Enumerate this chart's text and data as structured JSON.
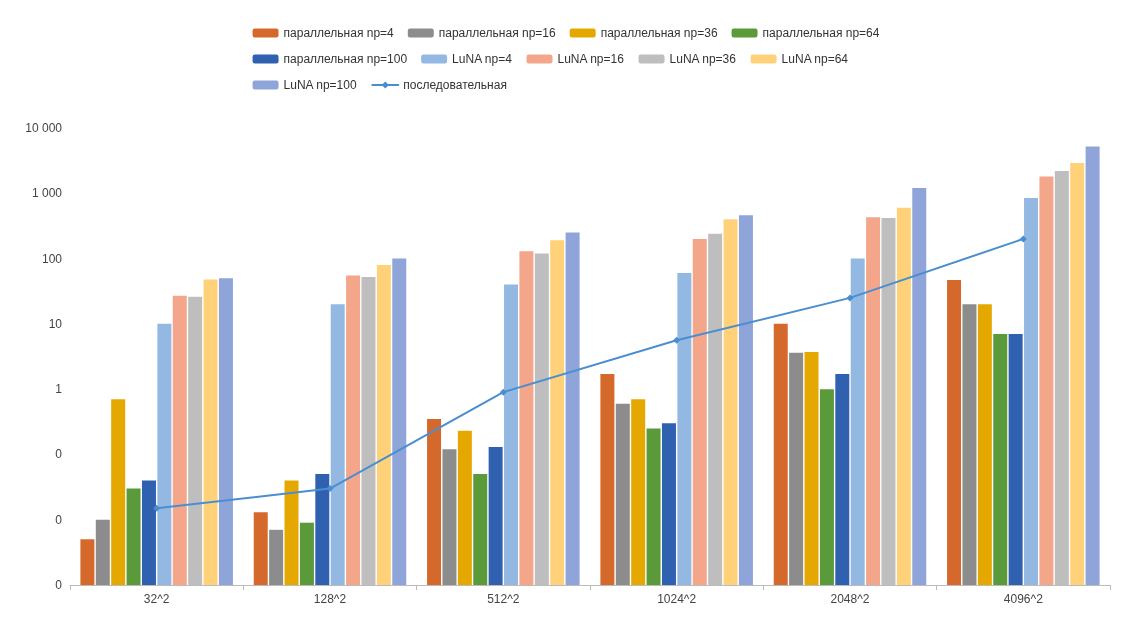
{
  "chart_data": {
    "type": "bar",
    "categories": [
      "32^2",
      "128^2",
      "512^2",
      "1024^2",
      "2048^2",
      "4096^2"
    ],
    "log": "y",
    "ylim": [
      0.001,
      10000
    ],
    "yticks": [
      {
        "value": 0.001,
        "label": "0"
      },
      {
        "value": 0.01,
        "label": "0"
      },
      {
        "value": 0.1,
        "label": "0"
      },
      1,
      10,
      100,
      {
        "value": 1000,
        "label": "1 000"
      },
      {
        "value": 10000,
        "label": "10 000"
      }
    ],
    "grid": false,
    "legend": "top",
    "series": [
      {
        "name": "параллельная np=4",
        "color": "#d4692b",
        "values": [
          0.005,
          0.013,
          0.35,
          1.7,
          10,
          47
        ]
      },
      {
        "name": "параллельная np=16",
        "color": "#8c8c8c",
        "values": [
          0.01,
          0.007,
          0.12,
          0.6,
          3.6,
          20
        ]
      },
      {
        "name": "параллельная np=36",
        "color": "#e5a800",
        "values": [
          0.7,
          0.04,
          0.23,
          0.7,
          3.7,
          20
        ]
      },
      {
        "name": "параллельная np=64",
        "color": "#5a9a3a",
        "values": [
          0.03,
          0.009,
          0.05,
          0.25,
          1,
          7
        ]
      },
      {
        "name": "параллельная np=100",
        "color": "#3060b0",
        "values": [
          0.04,
          0.05,
          0.13,
          0.3,
          1.7,
          7
        ]
      },
      {
        "name": "LuNA np=4",
        "color": "#93b8e2",
        "values": [
          10,
          20,
          40,
          60,
          100,
          850
        ]
      },
      {
        "name": "LuNA np=16",
        "color": "#f3a68a",
        "values": [
          27,
          55,
          130,
          200,
          430,
          1800
        ]
      },
      {
        "name": "LuNA np=36",
        "color": "#bebebe",
        "values": [
          26,
          52,
          120,
          240,
          420,
          2200
        ]
      },
      {
        "name": "LuNA np=64",
        "color": "#ffd27a",
        "values": [
          48,
          80,
          190,
          400,
          600,
          2900
        ]
      },
      {
        "name": "LuNA np=100",
        "color": "#8fa4d8",
        "values": [
          50,
          100,
          250,
          460,
          1200,
          5200
        ]
      },
      {
        "name": "последовательная",
        "type": "line",
        "color": "#4a8ed0",
        "marker": "diamond",
        "line_style": "solid",
        "values": [
          0.015,
          0.03,
          0.9,
          5.6,
          25,
          200
        ]
      }
    ]
  }
}
